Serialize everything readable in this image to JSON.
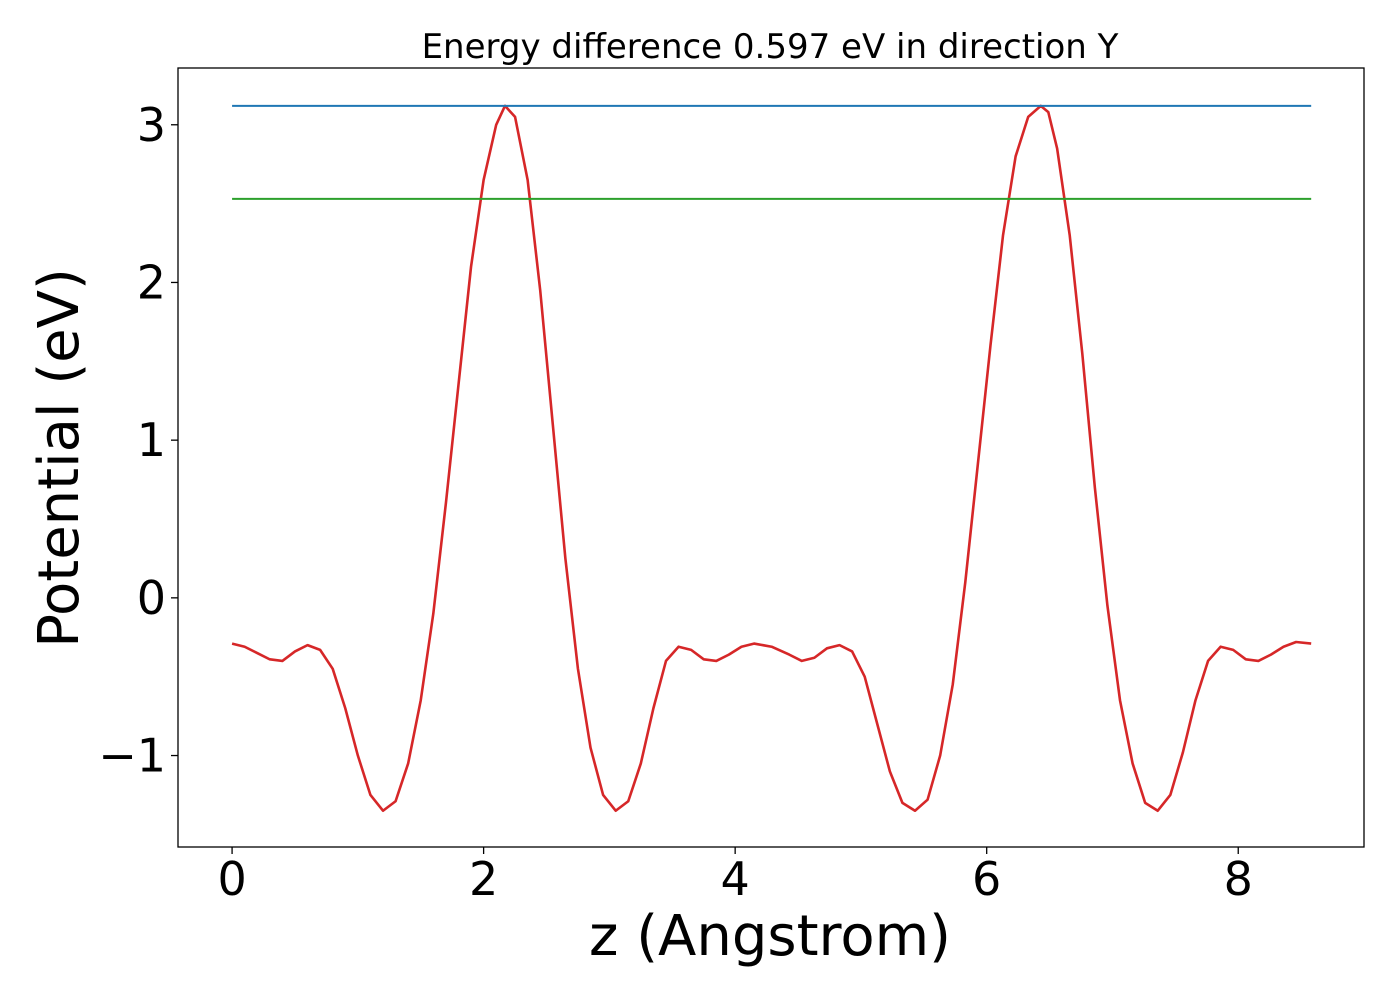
{
  "chart_data": {
    "type": "line",
    "title": "Energy difference 0.597 eV in direction Y",
    "xlabel": "z (Angstrom)",
    "ylabel": "Potential (eV)",
    "xlim": [
      -0.43,
      9.0
    ],
    "ylim": [
      -1.58,
      3.36
    ],
    "xticks": [
      0,
      2,
      4,
      6,
      8
    ],
    "xtick_labels": [
      "0",
      "2",
      "4",
      "6",
      "8"
    ],
    "yticks": [
      -1,
      0,
      1,
      2,
      3
    ],
    "ytick_labels": [
      "−1",
      "0",
      "1",
      "2",
      "3"
    ],
    "grid": false,
    "legend": "none",
    "series": [
      {
        "color": "#d62728",
        "x": [
          0.0,
          0.1,
          0.2,
          0.3,
          0.4,
          0.5,
          0.6,
          0.7,
          0.8,
          0.9,
          1.0,
          1.1,
          1.2,
          1.3,
          1.4,
          1.5,
          1.6,
          1.7,
          1.8,
          1.9,
          2.0,
          2.1,
          2.17,
          2.25,
          2.35,
          2.45,
          2.55,
          2.65,
          2.75,
          2.85,
          2.95,
          3.05,
          3.15,
          3.25,
          3.35,
          3.45,
          3.55,
          3.65,
          3.75,
          3.85,
          3.95,
          4.05,
          4.15,
          4.29,
          4.43,
          4.53,
          4.63,
          4.73,
          4.83,
          4.93,
          5.03,
          5.13,
          5.23,
          5.33,
          5.43,
          5.53,
          5.63,
          5.73,
          5.83,
          5.93,
          6.03,
          6.13,
          6.23,
          6.33,
          6.43,
          6.49,
          6.56,
          6.66,
          6.76,
          6.86,
          6.96,
          7.06,
          7.16,
          7.26,
          7.36,
          7.46,
          7.56,
          7.66,
          7.76,
          7.86,
          7.96,
          8.06,
          8.16,
          8.26,
          8.36,
          8.46,
          8.58
        ],
        "y": [
          -0.29,
          -0.31,
          -0.35,
          -0.39,
          -0.4,
          -0.34,
          -0.3,
          -0.33,
          -0.45,
          -0.7,
          -1.0,
          -1.25,
          -1.35,
          -1.29,
          -1.05,
          -0.65,
          -0.1,
          0.6,
          1.35,
          2.1,
          2.65,
          3.0,
          3.12,
          3.05,
          2.65,
          1.95,
          1.1,
          0.25,
          -0.45,
          -0.95,
          -1.25,
          -1.35,
          -1.29,
          -1.05,
          -0.7,
          -0.4,
          -0.31,
          -0.33,
          -0.39,
          -0.4,
          -0.36,
          -0.31,
          -0.29,
          -0.31,
          -0.36,
          -0.4,
          -0.38,
          -0.32,
          -0.3,
          -0.34,
          -0.5,
          -0.8,
          -1.1,
          -1.3,
          -1.35,
          -1.28,
          -1.0,
          -0.55,
          0.1,
          0.85,
          1.6,
          2.3,
          2.8,
          3.05,
          3.12,
          3.08,
          2.85,
          2.3,
          1.55,
          0.7,
          -0.05,
          -0.65,
          -1.05,
          -1.3,
          -1.35,
          -1.25,
          -0.98,
          -0.65,
          -0.4,
          -0.31,
          -0.33,
          -0.39,
          -0.4,
          -0.36,
          -0.31,
          -0.28,
          -0.29
        ]
      },
      {
        "color": "#1f77b4",
        "x": [
          0.0,
          8.58
        ],
        "y": [
          3.12,
          3.12
        ]
      },
      {
        "color": "#2ca02c",
        "x": [
          0.0,
          8.58
        ],
        "y": [
          2.53,
          2.53
        ]
      }
    ]
  }
}
